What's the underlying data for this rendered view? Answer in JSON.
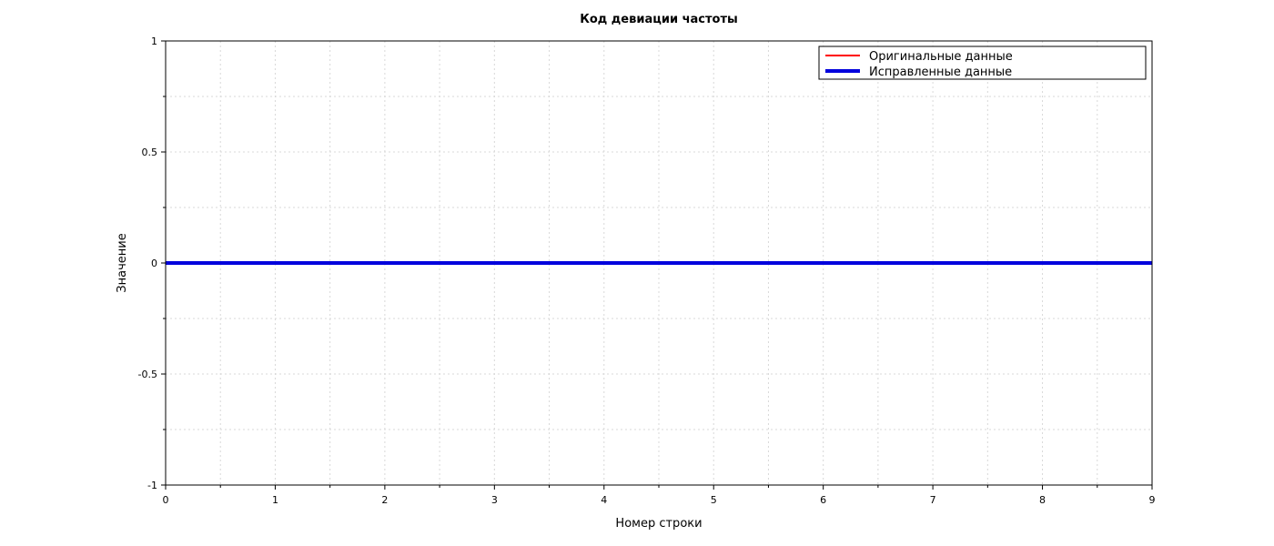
{
  "chart_data": {
    "type": "line",
    "title": "Код девиации частоты",
    "xlabel": "Номер строки",
    "ylabel": "Значение",
    "xlim": [
      0,
      9
    ],
    "ylim": [
      -1,
      1
    ],
    "x_ticks": [
      0,
      1,
      2,
      3,
      4,
      5,
      6,
      7,
      8,
      9
    ],
    "y_ticks": [
      -1,
      -0.5,
      0,
      0.5,
      1
    ],
    "x_tick_labels": [
      "0",
      "1",
      "2",
      "3",
      "4",
      "5",
      "6",
      "7",
      "8",
      "9"
    ],
    "y_tick_labels": [
      "-1",
      "-0.5",
      "0",
      "0.5",
      "1"
    ],
    "grid": true,
    "legend_position": "top-right",
    "x": [
      0,
      1,
      2,
      3,
      4,
      5,
      6,
      7,
      8,
      9
    ],
    "series": [
      {
        "name": "Оригинальные данные",
        "color": "#ff0000",
        "width": 2,
        "values": [
          0,
          0,
          0,
          0,
          0,
          0,
          0,
          0,
          0,
          0
        ]
      },
      {
        "name": "Исправленные данные",
        "color": "#0000dd",
        "width": 4,
        "values": [
          0,
          0,
          0,
          0,
          0,
          0,
          0,
          0,
          0,
          0
        ]
      }
    ]
  }
}
